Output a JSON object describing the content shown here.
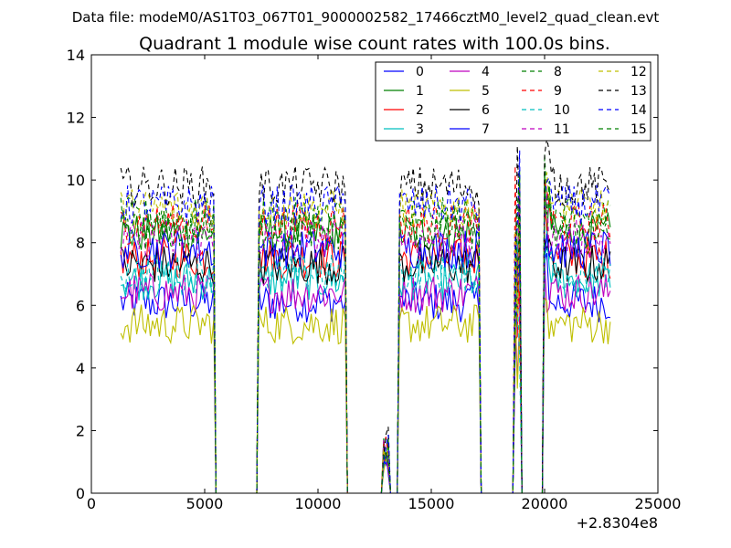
{
  "chart_data": {
    "type": "line",
    "suptitle": "Data file: modeM0/AS1T03_067T01_9000002582_17466cztM0_level2_quad_clean.evt",
    "title": "Quadrant 1 module wise count rates with 100.0s bins.",
    "xlabel": "",
    "ylabel": "",
    "x_offset_label": "+2.8304e8",
    "xlim": [
      0,
      25000
    ],
    "ylim": [
      0,
      14
    ],
    "xticks": [
      0,
      5000,
      10000,
      15000,
      20000,
      25000
    ],
    "xtick_labels": [
      "0",
      "5000",
      "10000",
      "15000",
      "20000",
      "25000"
    ],
    "yticks": [
      0,
      2,
      4,
      6,
      8,
      10,
      12,
      14
    ],
    "ytick_labels": [
      "0",
      "2",
      "4",
      "6",
      "8",
      "10",
      "12",
      "14"
    ],
    "grid": false,
    "legend_position": "top-right",
    "legend_columns": 4,
    "bin_width": 100,
    "x_range_data": [
      1300,
      22900
    ],
    "active_intervals": [
      [
        1300,
        5400
      ],
      [
        7400,
        11200
      ],
      [
        12900,
        13100
      ],
      [
        13600,
        17100
      ],
      [
        18700,
        18900
      ],
      [
        20000,
        22900
      ]
    ],
    "series": [
      {
        "name": "0",
        "color": "#0000ff",
        "style": "solid",
        "mean": 6.1
      },
      {
        "name": "1",
        "color": "#008000",
        "style": "solid",
        "mean": 8.3
      },
      {
        "name": "2",
        "color": "#ff0000",
        "style": "solid",
        "mean": 7.5
      },
      {
        "name": "3",
        "color": "#00bfbf",
        "style": "solid",
        "mean": 6.8
      },
      {
        "name": "4",
        "color": "#bf00bf",
        "style": "solid",
        "mean": 6.4
      },
      {
        "name": "5",
        "color": "#bfbf00",
        "style": "solid",
        "mean": 5.4
      },
      {
        "name": "6",
        "color": "#000000",
        "style": "solid",
        "mean": 7.3
      },
      {
        "name": "7",
        "color": "#0000ff",
        "style": "solid",
        "mean": 7.8
      },
      {
        "name": "8",
        "color": "#008000",
        "style": "dashed",
        "mean": 8.8
      },
      {
        "name": "9",
        "color": "#ff0000",
        "style": "dashed",
        "mean": 8.6
      },
      {
        "name": "10",
        "color": "#00bfbf",
        "style": "dashed",
        "mean": 7.0
      },
      {
        "name": "11",
        "color": "#bf00bf",
        "style": "dashed",
        "mean": 8.1
      },
      {
        "name": "12",
        "color": "#bfbf00",
        "style": "dashed",
        "mean": 9.1
      },
      {
        "name": "13",
        "color": "#000000",
        "style": "dashed",
        "mean": 9.8
      },
      {
        "name": "14",
        "color": "#0000ff",
        "style": "dashed",
        "mean": 9.2
      },
      {
        "name": "15",
        "color": "#008000",
        "style": "dashed",
        "mean": 8.4
      }
    ]
  }
}
